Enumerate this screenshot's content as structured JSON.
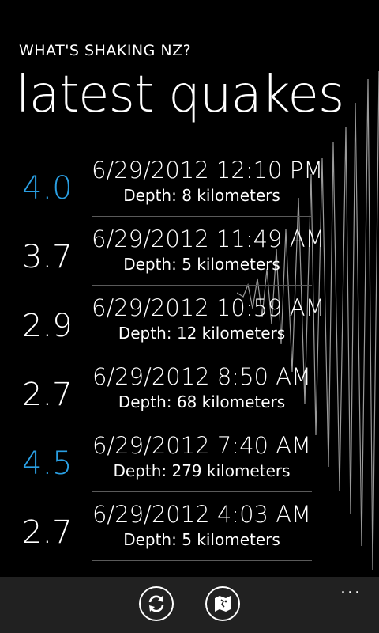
{
  "header": {
    "app_title": "WHAT'S SHAKING NZ?",
    "page_title": "latest quakes"
  },
  "colors": {
    "accent": "#2a9fe3",
    "appbar": "#212121",
    "divider": "#5a5a5a"
  },
  "quakes": [
    {
      "magnitude": "4.0",
      "date": "6/29/2012 12:10 PM",
      "depth": "Depth: 8 kilometers",
      "highlight": true
    },
    {
      "magnitude": "3.7",
      "date": "6/29/2012 11:49 AM",
      "depth": "Depth: 5 kilometers",
      "highlight": false
    },
    {
      "magnitude": "2.9",
      "date": "6/29/2012 10:59 AM",
      "depth": "Depth: 12 kilometers",
      "highlight": false
    },
    {
      "magnitude": "2.7",
      "date": "6/29/2012 8:50 AM",
      "depth": "Depth: 68 kilometers",
      "highlight": false
    },
    {
      "magnitude": "4.5",
      "date": "6/29/2012 7:40 AM",
      "depth": "Depth: 279 kilometers",
      "highlight": true
    },
    {
      "magnitude": "2.7",
      "date": "6/29/2012 4:03 AM",
      "depth": "Depth: 5 kilometers",
      "highlight": false
    }
  ],
  "appbar": {
    "buttons": [
      {
        "name": "refresh-button",
        "icon": "refresh-icon"
      },
      {
        "name": "map-button",
        "icon": "map-icon"
      }
    ],
    "more": "..."
  }
}
